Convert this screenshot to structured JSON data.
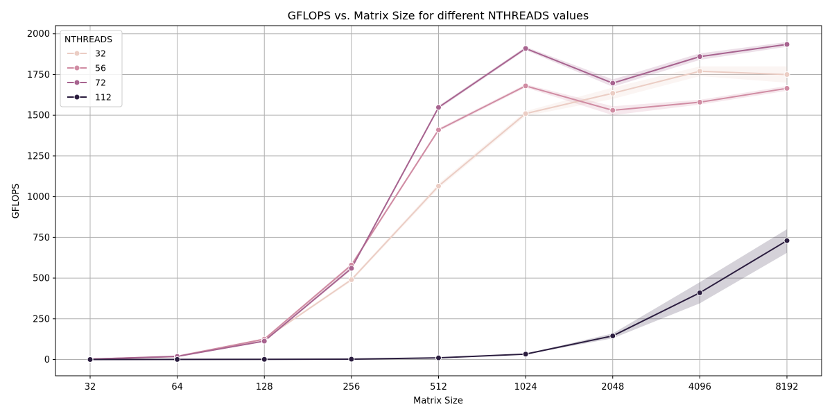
{
  "chart_data": {
    "type": "line",
    "title": "GFLOPS vs. Matrix Size for different NTHREADS values",
    "xlabel": "Matrix Size",
    "ylabel": "GFLOPS",
    "categories": [
      "32",
      "64",
      "128",
      "256",
      "512",
      "1024",
      "2048",
      "4096",
      "8192"
    ],
    "ylim": [
      -100,
      2050
    ],
    "yticks": [
      0,
      250,
      500,
      750,
      1000,
      1250,
      1500,
      1750,
      2000
    ],
    "grid": true,
    "legend": {
      "title": "NTHREADS",
      "placement": "top-left"
    },
    "series": [
      {
        "name": "32",
        "color": "#ebcdc4",
        "values": [
          1,
          18,
          125,
          490,
          1065,
          1510,
          1635,
          1770,
          1750
        ],
        "lower": [
          1,
          16,
          120,
          480,
          1050,
          1495,
          1600,
          1740,
          1700
        ],
        "upper": [
          1,
          20,
          130,
          500,
          1080,
          1525,
          1670,
          1800,
          1800
        ]
      },
      {
        "name": "56",
        "color": "#d08ca3",
        "values": [
          2,
          20,
          125,
          580,
          1410,
          1680,
          1530,
          1580,
          1665
        ],
        "lower": [
          2,
          18,
          120,
          570,
          1400,
          1670,
          1500,
          1565,
          1650
        ],
        "upper": [
          2,
          22,
          130,
          590,
          1420,
          1690,
          1555,
          1595,
          1680
        ]
      },
      {
        "name": "72",
        "color": "#a7638f",
        "values": [
          2,
          19,
          113,
          560,
          1548,
          1910,
          1697,
          1860,
          1935
        ],
        "lower": [
          2,
          17,
          108,
          550,
          1538,
          1900,
          1675,
          1840,
          1920
        ],
        "upper": [
          2,
          21,
          118,
          570,
          1558,
          1920,
          1720,
          1880,
          1950
        ]
      },
      {
        "name": "112",
        "color": "#2b1d3f",
        "values": [
          0,
          0.5,
          1,
          2,
          10,
          33,
          145,
          410,
          730
        ],
        "lower": [
          0,
          0.4,
          0.8,
          1.8,
          9,
          31,
          130,
          345,
          655
        ],
        "upper": [
          0,
          0.6,
          1.2,
          2.2,
          11,
          35,
          160,
          475,
          800
        ]
      }
    ]
  }
}
